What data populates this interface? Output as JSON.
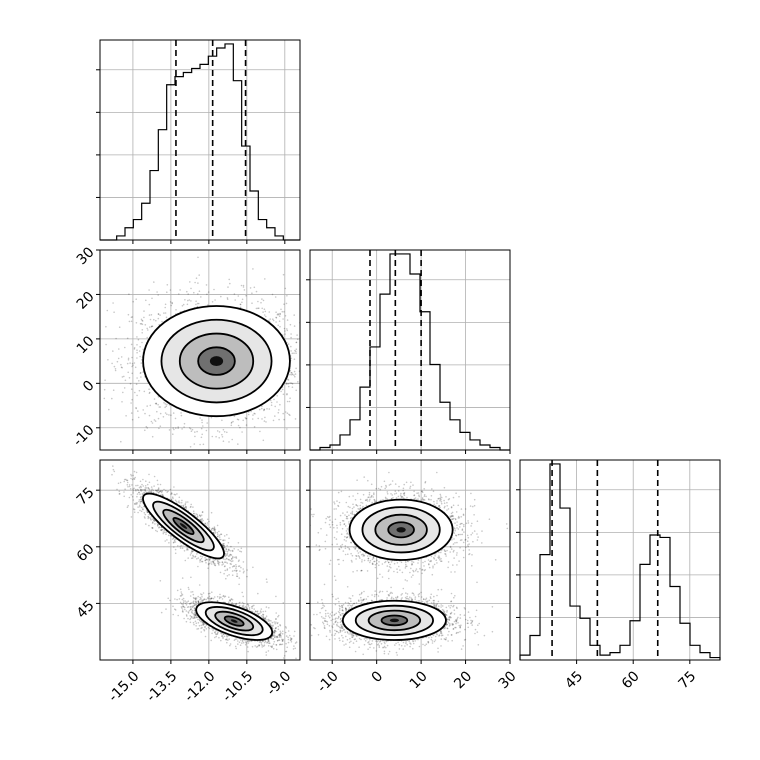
{
  "chart_data": {
    "type": "corner",
    "grid": true,
    "params": [
      "p0",
      "p1",
      "p2"
    ],
    "histograms": [
      {
        "param": "p0",
        "range": [
          -16.3,
          -8.4
        ],
        "quantiles": [
          -13.3,
          -11.85,
          -10.55
        ],
        "counts": [
          0,
          0,
          1,
          3,
          5,
          9,
          17,
          27,
          38,
          40,
          41,
          42,
          43,
          45,
          47,
          48,
          39,
          23,
          12,
          5,
          3,
          1,
          0,
          0
        ]
      },
      {
        "param": "p1",
        "range": [
          -15,
          30
        ],
        "quantiles": [
          -1.5,
          4.2,
          10.0
        ],
        "counts": [
          0,
          1,
          2,
          6,
          12,
          25,
          41,
          62,
          78,
          78,
          70,
          55,
          34,
          19,
          12,
          7,
          4,
          2,
          1,
          0
        ]
      },
      {
        "param": "p2",
        "range": [
          30,
          83
        ],
        "quantiles": [
          38.5,
          50.5,
          66.5
        ],
        "counts": [
          2,
          10,
          43,
          80,
          62,
          22,
          17,
          6,
          2,
          3,
          6,
          16,
          39,
          51,
          50,
          30,
          15,
          6,
          3,
          1
        ]
      }
    ],
    "scatter_panels": [
      {
        "x": "p0",
        "y": "p1",
        "xlim": [
          -16.3,
          -8.4
        ],
        "ylim": [
          -15,
          30
        ],
        "modes": [
          {
            "cx": -11.7,
            "cy": 5,
            "sx": 1.45,
            "sy": 6.2,
            "rho": 0
          }
        ]
      },
      {
        "x": "p0",
        "y": "p2",
        "xlim": [
          -16.3,
          -8.4
        ],
        "ylim": [
          30,
          83
        ],
        "modes": [
          {
            "cx": -13.0,
            "cy": 65.5,
            "sx": 0.8,
            "sy": 4.3,
            "rho": -0.85
          },
          {
            "cx": -11.0,
            "cy": 40.3,
            "sx": 0.75,
            "sy": 2.5,
            "rho": -0.6
          }
        ]
      },
      {
        "x": "p1",
        "y": "p2",
        "xlim": [
          -15,
          30
        ],
        "ylim": [
          30,
          83
        ],
        "modes": [
          {
            "cx": 5.5,
            "cy": 64.5,
            "sx": 5.8,
            "sy": 4.0,
            "rho": 0
          },
          {
            "cx": 4.0,
            "cy": 40.5,
            "sx": 5.8,
            "sy": 2.6,
            "rho": 0
          }
        ]
      }
    ],
    "x_ticks": [
      [
        "-15.0",
        "-13.5",
        "-12.0",
        "-10.5",
        "-9.0"
      ],
      [
        "-10",
        "0",
        "10",
        "20",
        "30"
      ],
      [
        "45",
        "60",
        "75"
      ]
    ],
    "y_ticks": [
      [
        "-10",
        "0",
        "10",
        "20",
        "30"
      ],
      [
        "45",
        "60",
        "75"
      ]
    ]
  }
}
